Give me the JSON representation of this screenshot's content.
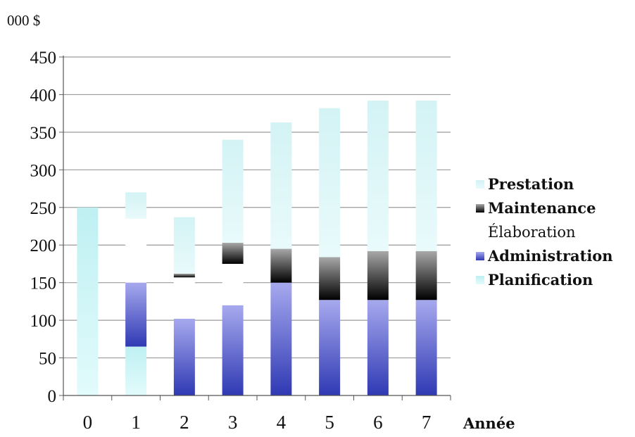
{
  "chart_data": {
    "type": "bar",
    "stacked": true,
    "unit_label": "000 $",
    "xlabel": "Année",
    "ylabel": "",
    "ylim": [
      0,
      450
    ],
    "yticks": [
      0,
      50,
      100,
      150,
      200,
      250,
      300,
      350,
      400,
      450
    ],
    "grid": true,
    "legend_position": "right",
    "categories": [
      "0",
      "1",
      "2",
      "3",
      "4",
      "5",
      "6",
      "7"
    ],
    "series": [
      {
        "name": "Planification",
        "values": [
          250,
          65,
          0,
          0,
          0,
          0,
          0,
          0
        ],
        "colors": [
          "#bff0f2",
          "#e2fbfc"
        ]
      },
      {
        "name": "Administration",
        "values": [
          0,
          85,
          102,
          120,
          150,
          127,
          127,
          127
        ],
        "colors": [
          "#a7a9ee",
          "#2f39b3"
        ]
      },
      {
        "name": "Élaboration",
        "values": [
          0,
          85,
          55,
          55,
          0,
          0,
          0,
          0
        ],
        "colors": [
          "#ffffff",
          "#ffffff"
        ]
      },
      {
        "name": "Maintenance",
        "values": [
          0,
          0,
          5,
          28,
          45,
          57,
          65,
          65
        ],
        "colors": [
          "#a8a8a8",
          "#000000"
        ]
      },
      {
        "name": "Prestation",
        "values": [
          0,
          35,
          75,
          137,
          168,
          198,
          200,
          200
        ],
        "colors": [
          "#d3f3f5",
          "#e9fafb"
        ]
      }
    ]
  }
}
